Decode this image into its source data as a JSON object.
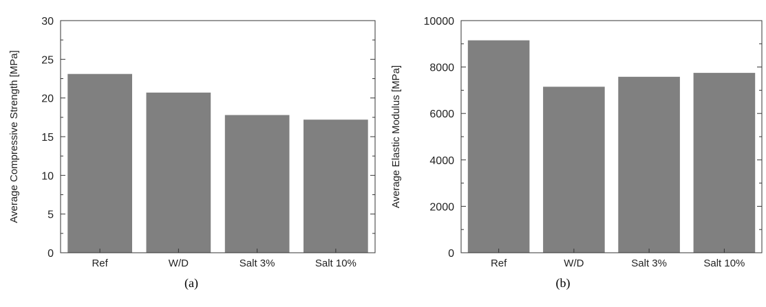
{
  "chart_data": [
    {
      "type": "bar",
      "caption": "(a)",
      "categories": [
        "Ref",
        "W/D",
        "Salt 3%",
        "Salt 10%"
      ],
      "values": [
        23.1,
        20.7,
        17.8,
        17.2
      ],
      "ylabel": "Average Compressive Strength [MPa]",
      "xlabel": "",
      "ylim": [
        0,
        30
      ],
      "yticks": [
        "0",
        "5",
        "10",
        "15",
        "20",
        "25",
        "30"
      ],
      "bar_color": "#808080",
      "grid": false
    },
    {
      "type": "bar",
      "caption": "(b)",
      "categories": [
        "Ref",
        "W/D",
        "Salt 3%",
        "Salt 10%"
      ],
      "values": [
        9150,
        7150,
        7580,
        7750
      ],
      "ylabel": "Average Elastic Modulus [MPa]",
      "xlabel": "",
      "ylim": [
        0,
        10000
      ],
      "yticks": [
        "0",
        "2000",
        "4000",
        "6000",
        "8000",
        "10000"
      ],
      "bar_color": "#808080",
      "grid": false
    }
  ]
}
